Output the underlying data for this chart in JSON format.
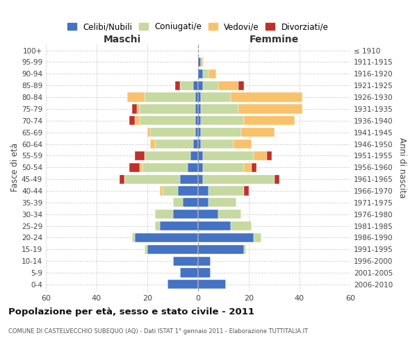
{
  "age_groups": [
    "0-4",
    "5-9",
    "10-14",
    "15-19",
    "20-24",
    "25-29",
    "30-34",
    "35-39",
    "40-44",
    "45-49",
    "50-54",
    "55-59",
    "60-64",
    "65-69",
    "70-74",
    "75-79",
    "80-84",
    "85-89",
    "90-94",
    "95-99",
    "100+"
  ],
  "birth_years": [
    "2006-2010",
    "2001-2005",
    "1996-2000",
    "1991-1995",
    "1986-1990",
    "1981-1985",
    "1976-1980",
    "1971-1975",
    "1966-1970",
    "1961-1965",
    "1956-1960",
    "1951-1955",
    "1946-1950",
    "1941-1945",
    "1936-1940",
    "1931-1935",
    "1926-1930",
    "1921-1925",
    "1916-1920",
    "1911-1915",
    "≤ 1910"
  ],
  "males": {
    "celibi": [
      12,
      7,
      10,
      20,
      25,
      15,
      10,
      6,
      8,
      7,
      4,
      3,
      2,
      1,
      1,
      1,
      1,
      2,
      0,
      0,
      0
    ],
    "coniugati": [
      0,
      0,
      0,
      1,
      1,
      2,
      7,
      4,
      6,
      22,
      18,
      18,
      15,
      18,
      22,
      22,
      20,
      5,
      0,
      0,
      0
    ],
    "vedovi": [
      0,
      0,
      0,
      0,
      0,
      0,
      0,
      0,
      1,
      0,
      1,
      0,
      2,
      1,
      2,
      1,
      7,
      0,
      0,
      0,
      0
    ],
    "divorziati": [
      0,
      0,
      0,
      0,
      0,
      0,
      0,
      0,
      0,
      2,
      4,
      4,
      0,
      0,
      2,
      2,
      0,
      2,
      0,
      0,
      0
    ]
  },
  "females": {
    "nubili": [
      11,
      5,
      5,
      18,
      22,
      13,
      8,
      4,
      4,
      2,
      2,
      2,
      1,
      1,
      1,
      1,
      1,
      2,
      2,
      1,
      0
    ],
    "coniugate": [
      0,
      0,
      0,
      1,
      3,
      8,
      9,
      11,
      14,
      28,
      16,
      20,
      13,
      16,
      17,
      15,
      12,
      6,
      2,
      0,
      0
    ],
    "vedove": [
      0,
      0,
      0,
      0,
      0,
      0,
      0,
      0,
      0,
      0,
      3,
      5,
      7,
      13,
      20,
      25,
      28,
      8,
      3,
      1,
      0
    ],
    "divorziate": [
      0,
      0,
      0,
      0,
      0,
      0,
      0,
      0,
      2,
      2,
      2,
      2,
      0,
      0,
      0,
      0,
      0,
      2,
      0,
      0,
      0
    ]
  },
  "colors": {
    "celibi_nubili": "#4472C4",
    "coniugati": "#C5D9A0",
    "vedovi": "#F9C16A",
    "divorziati": "#C0302A"
  },
  "title": "Popolazione per età, sesso e stato civile - 2011",
  "subtitle": "COMUNE DI CASTELVECCHIO SUBEQUO (AQ) - Dati ISTAT 1° gennaio 2011 - Elaborazione TUTTITALIA.IT",
  "xlabel_left": "Maschi",
  "xlabel_right": "Femmine",
  "ylabel_left": "Fasce di età",
  "ylabel_right": "Anni di nascita",
  "xlim": 60,
  "background_color": "#ffffff",
  "grid_color": "#cccccc"
}
